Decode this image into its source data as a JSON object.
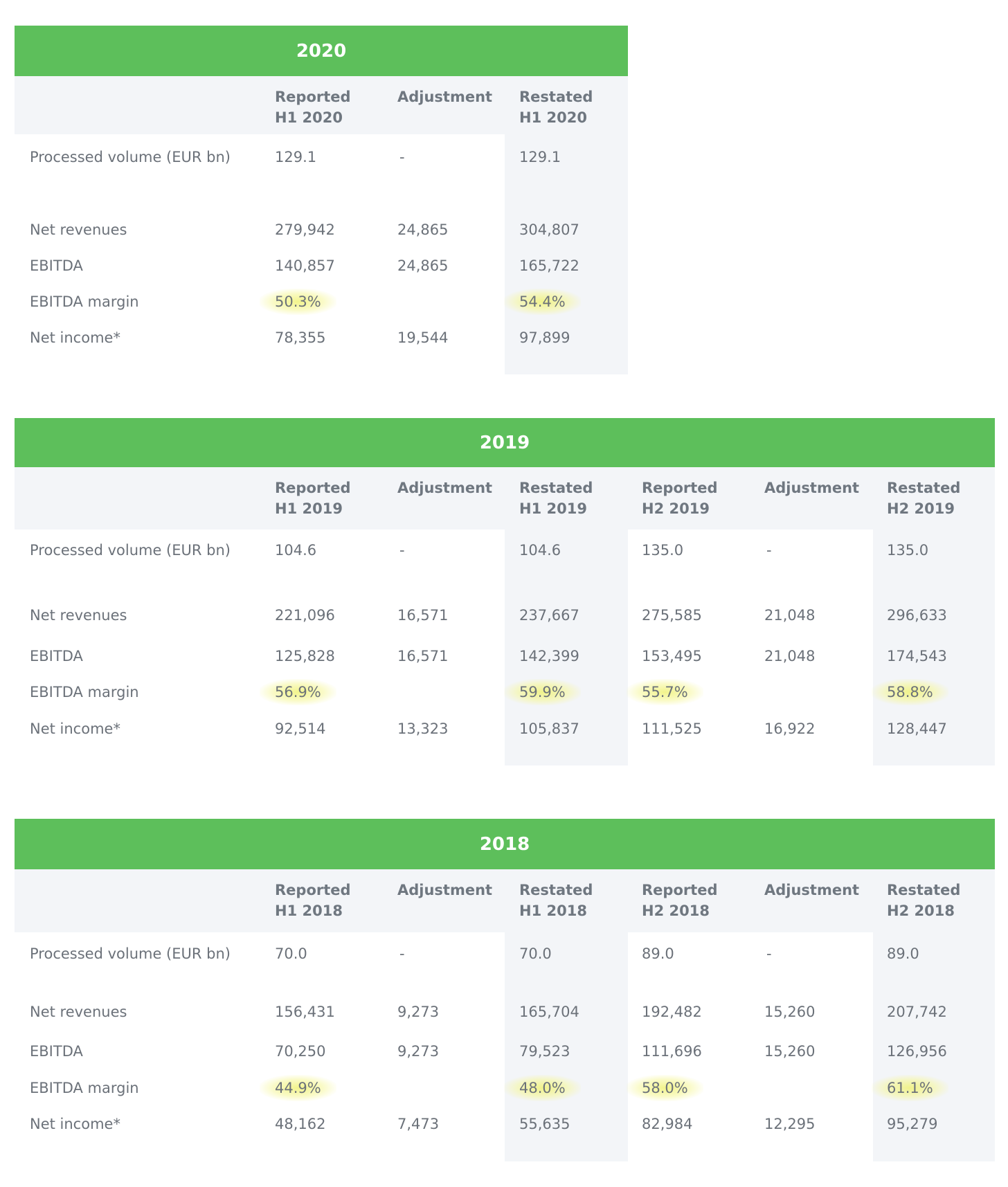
{
  "tables": [
    {
      "year": "2020",
      "columns": [
        {
          "line1": "Reported",
          "line2": "H1 2020"
        },
        {
          "line1": "Adjustment",
          "line2": ""
        },
        {
          "line1": "Restated",
          "line2": "H1 2020"
        }
      ],
      "rows": [
        {
          "label": "Processed volume (EUR bn)",
          "values": [
            "129.1",
            "-",
            "129.1"
          ]
        },
        {
          "label": "Net revenues",
          "values": [
            "279,942",
            "24,865",
            "304,807"
          ]
        },
        {
          "label": "EBITDA",
          "values": [
            "140,857",
            "24,865",
            "165,722"
          ]
        },
        {
          "label": "EBITDA margin",
          "values": [
            "50.3%",
            "",
            "54.4%"
          ]
        },
        {
          "label": "Net income*",
          "values": [
            "78,355",
            "19,544",
            "97,899"
          ]
        }
      ]
    },
    {
      "year": "2019",
      "columns": [
        {
          "line1": "Reported",
          "line2": "H1 2019"
        },
        {
          "line1": "Adjustment",
          "line2": ""
        },
        {
          "line1": "Restated",
          "line2": "H1 2019"
        },
        {
          "line1": "Reported",
          "line2": "H2 2019"
        },
        {
          "line1": "Adjustment",
          "line2": ""
        },
        {
          "line1": "Restated",
          "line2": "H2 2019"
        }
      ],
      "rows": [
        {
          "label": "Processed volume (EUR bn)",
          "values": [
            "104.6",
            "-",
            "104.6",
            "135.0",
            "-",
            "135.0"
          ]
        },
        {
          "label": "Net revenues",
          "values": [
            "221,096",
            "16,571",
            "237,667",
            "275,585",
            "21,048",
            "296,633"
          ]
        },
        {
          "label": "EBITDA",
          "values": [
            "125,828",
            "16,571",
            "142,399",
            "153,495",
            "21,048",
            "174,543"
          ]
        },
        {
          "label": "EBITDA margin",
          "values": [
            "56.9%",
            "",
            "59.9%",
            "55.7%",
            "",
            "58.8%"
          ]
        },
        {
          "label": "Net income*",
          "values": [
            "92,514",
            "13,323",
            "105,837",
            "111,525",
            "16,922",
            "128,447"
          ]
        }
      ]
    },
    {
      "year": "2018",
      "columns": [
        {
          "line1": "Reported",
          "line2": "H1 2018"
        },
        {
          "line1": "Adjustment",
          "line2": ""
        },
        {
          "line1": "Restated",
          "line2": "H1 2018"
        },
        {
          "line1": "Reported",
          "line2": "H2 2018"
        },
        {
          "line1": "Adjustment",
          "line2": ""
        },
        {
          "line1": "Restated",
          "line2": "H2 2018"
        }
      ],
      "rows": [
        {
          "label": "Processed volume (EUR bn)",
          "values": [
            "70.0",
            "-",
            "70.0",
            "89.0",
            "-",
            "89.0"
          ]
        },
        {
          "label": "Net revenues",
          "values": [
            "156,431",
            "9,273",
            "165,704",
            "192,482",
            "15,260",
            "207,742"
          ]
        },
        {
          "label": "EBITDA",
          "values": [
            "70,250",
            "9,273",
            "79,523",
            "111,696",
            "15,260",
            "126,956"
          ]
        },
        {
          "label": "EBITDA margin",
          "values": [
            "44.9%",
            "",
            "48.0%",
            "58.0%",
            "",
            "61.1%"
          ]
        },
        {
          "label": "Net income*",
          "values": [
            "48,162",
            "7,473",
            "55,635",
            "82,984",
            "12,295",
            "95,279"
          ]
        }
      ]
    }
  ],
  "colors": {
    "band": "#5dbf5b",
    "shade": "#f3f5f8",
    "highlight": "#f0f278"
  }
}
